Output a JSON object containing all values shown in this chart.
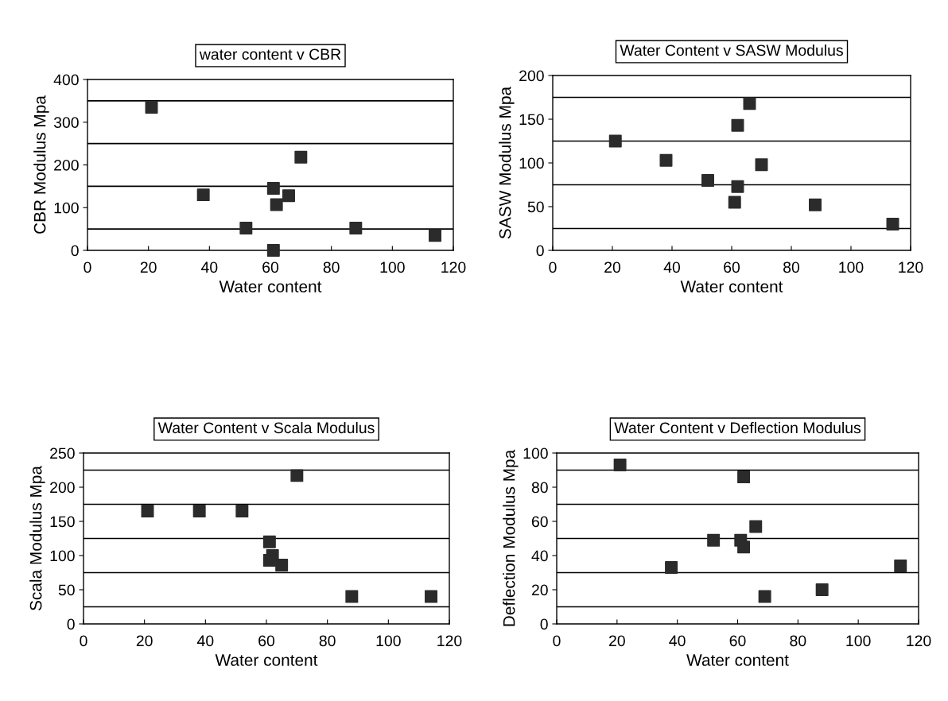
{
  "chart_data": [
    {
      "type": "scatter",
      "title": "water content v CBR",
      "xlabel": "Water content",
      "ylabel": "CBR Modulus Mpa",
      "marker": "square",
      "grid": false,
      "x": [
        21,
        38,
        52,
        61,
        62,
        61,
        66,
        70,
        88,
        114
      ],
      "series": [
        {
          "color": "#2b2b2b",
          "values": [
            335,
            130,
            52,
            145,
            107,
            0,
            128,
            218,
            52,
            35
          ]
        }
      ],
      "xlim": [
        0,
        120
      ],
      "xticks": [
        0,
        20,
        40,
        60,
        80,
        100,
        120
      ],
      "ylim": [
        0,
        400
      ],
      "yticks": [
        0,
        100,
        200,
        300,
        400
      ],
      "ref_lines": [
        {
          "axis": "y",
          "value": 50,
          "color": "#000000"
        },
        {
          "axis": "y",
          "value": 150,
          "color": "#000000"
        },
        {
          "axis": "y",
          "value": 250,
          "color": "#000000"
        },
        {
          "axis": "y",
          "value": 350,
          "color": "#000000"
        }
      ]
    },
    {
      "type": "scatter",
      "title": "Water Content v SASW Modulus",
      "xlabel": "Water content",
      "ylabel": "SASW Modulus Mpa",
      "marker": "square",
      "grid": false,
      "x": [
        21,
        38,
        52,
        61,
        62,
        62,
        66,
        70,
        88,
        114
      ],
      "series": [
        {
          "color": "#2b2b2b",
          "values": [
            125,
            103,
            80,
            55,
            73,
            143,
            168,
            98,
            52,
            30
          ]
        }
      ],
      "xlim": [
        0,
        120
      ],
      "xticks": [
        0,
        20,
        40,
        60,
        80,
        100,
        120
      ],
      "ylim": [
        0,
        200
      ],
      "yticks": [
        0,
        50,
        100,
        150,
        200
      ],
      "ref_lines": [
        {
          "axis": "y",
          "value": 25,
          "color": "#000000"
        },
        {
          "axis": "y",
          "value": 75,
          "color": "#000000"
        },
        {
          "axis": "y",
          "value": 125,
          "color": "#000000"
        },
        {
          "axis": "y",
          "value": 175,
          "color": "#000000"
        }
      ]
    },
    {
      "type": "scatter",
      "title": "Water Content v Scala Modulus",
      "xlabel": "Water content",
      "ylabel": "Scala Modulus Mpa",
      "marker": "square",
      "grid": false,
      "x": [
        21,
        38,
        52,
        61,
        62,
        61,
        65,
        70,
        88,
        114
      ],
      "series": [
        {
          "color": "#2b2b2b",
          "values": [
            165,
            165,
            165,
            120,
            100,
            93,
            86,
            217,
            40,
            40
          ]
        }
      ],
      "xlim": [
        0,
        120
      ],
      "xticks": [
        0,
        20,
        40,
        60,
        80,
        100,
        120
      ],
      "ylim": [
        0,
        250
      ],
      "yticks": [
        0,
        50,
        100,
        150,
        200,
        250
      ],
      "ref_lines": [
        {
          "axis": "y",
          "value": 25,
          "color": "#000000"
        },
        {
          "axis": "y",
          "value": 75,
          "color": "#000000"
        },
        {
          "axis": "y",
          "value": 125,
          "color": "#000000"
        },
        {
          "axis": "y",
          "value": 175,
          "color": "#000000"
        },
        {
          "axis": "y",
          "value": 225,
          "color": "#000000"
        }
      ]
    },
    {
      "type": "scatter",
      "title": "Water Content v Deflection Modulus",
      "xlabel": "Water content",
      "ylabel": "Deflection Modulus Mpa",
      "marker": "square",
      "grid": false,
      "x": [
        21,
        38,
        52,
        61,
        62,
        62,
        66,
        69,
        88,
        114
      ],
      "series": [
        {
          "color": "#2b2b2b",
          "values": [
            93,
            33,
            49,
            49,
            45,
            86,
            57,
            16,
            20,
            34
          ]
        }
      ],
      "xlim": [
        0,
        120
      ],
      "xticks": [
        0,
        20,
        40,
        60,
        80,
        100,
        120
      ],
      "ylim": [
        0,
        100
      ],
      "yticks": [
        0,
        20,
        40,
        60,
        80,
        100
      ],
      "ref_lines": [
        {
          "axis": "y",
          "value": 10,
          "color": "#000000"
        },
        {
          "axis": "y",
          "value": 30,
          "color": "#000000"
        },
        {
          "axis": "y",
          "value": 50,
          "color": "#000000"
        },
        {
          "axis": "y",
          "value": 70,
          "color": "#000000"
        },
        {
          "axis": "y",
          "value": 90,
          "color": "#000000"
        }
      ]
    }
  ]
}
